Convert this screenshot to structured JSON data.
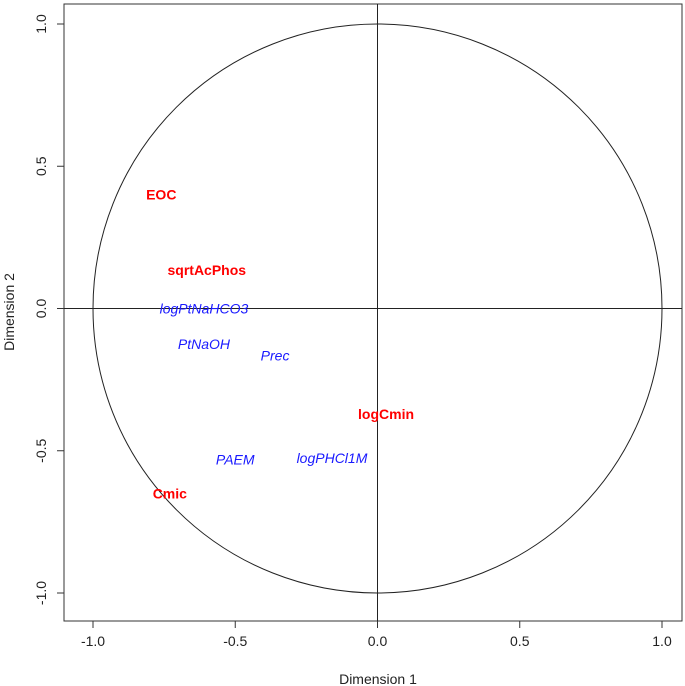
{
  "chart_data": {
    "type": "scatter",
    "xlabel": "Dimension 1",
    "ylabel": "Dimension 2",
    "xlim": [
      -1.0,
      1.0
    ],
    "ylim": [
      -1.0,
      1.0
    ],
    "xticks": [
      "-1.0",
      "-0.5",
      "0.0",
      "0.5",
      "1.0"
    ],
    "yticks": [
      "-1.0",
      "-0.5",
      "0.0",
      "0.5",
      "1.0"
    ],
    "unit_circle": true,
    "reference_lines": {
      "x": 0,
      "y": 0
    },
    "grid": false,
    "points": [
      {
        "label": "EOC",
        "x": -0.76,
        "y": 0.4,
        "style": "bold",
        "color": "#ff0000"
      },
      {
        "label": "sqrtAcPhos",
        "x": -0.6,
        "y": 0.135,
        "style": "bold",
        "color": "#ff0000"
      },
      {
        "label": "logCmin",
        "x": 0.03,
        "y": -0.37,
        "style": "bold",
        "color": "#ff0000"
      },
      {
        "label": "Cmic",
        "x": -0.73,
        "y": -0.65,
        "style": "bold",
        "color": "#ff0000"
      },
      {
        "label": "logPtNaHCO3",
        "x": -0.61,
        "y": 0.0,
        "style": "italic",
        "color": "#1a1aff"
      },
      {
        "label": "PtNaOH",
        "x": -0.61,
        "y": -0.125,
        "style": "italic",
        "color": "#1a1aff"
      },
      {
        "label": "Prec",
        "x": -0.36,
        "y": -0.165,
        "style": "italic",
        "color": "#1a1aff"
      },
      {
        "label": "PAEM",
        "x": -0.5,
        "y": -0.53,
        "style": "italic",
        "color": "#1a1aff"
      },
      {
        "label": "logPHCl1M",
        "x": -0.16,
        "y": -0.525,
        "style": "italic",
        "color": "#1a1aff"
      }
    ]
  }
}
